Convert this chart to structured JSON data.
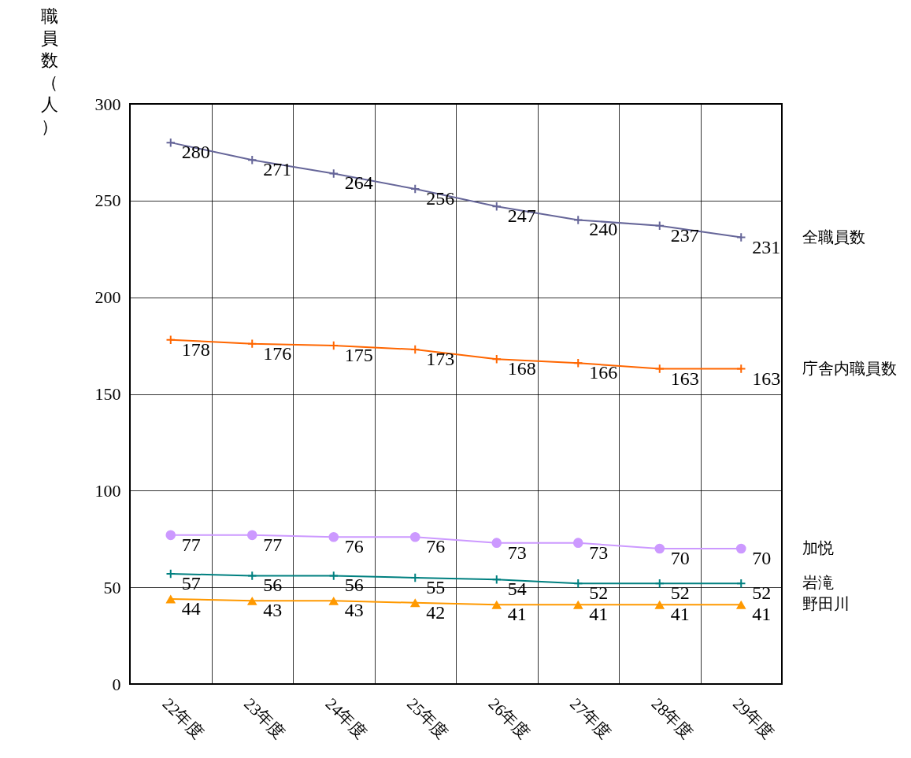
{
  "chart_data": {
    "type": "line",
    "ylabel": "職員数（人）",
    "categories": [
      "22年度",
      "23年度",
      "24年度",
      "25年度",
      "26年度",
      "27年度",
      "28年度",
      "29年度"
    ],
    "series": [
      {
        "name": "全職員数",
        "color": "#666699",
        "marker": "cross",
        "values": [
          280,
          271,
          264,
          256,
          247,
          240,
          237,
          231
        ]
      },
      {
        "name": "庁舎内職員数",
        "color": "#ff6600",
        "marker": "cross",
        "values": [
          178,
          176,
          175,
          173,
          168,
          166,
          163,
          163
        ]
      },
      {
        "name": "加悦",
        "color": "#cc99ff",
        "marker": "circle",
        "values": [
          77,
          77,
          76,
          76,
          73,
          73,
          70,
          70
        ]
      },
      {
        "name": "岩滝",
        "color": "#008080",
        "marker": "cross",
        "values": [
          57,
          56,
          56,
          55,
          54,
          52,
          52,
          52
        ]
      },
      {
        "name": "野田川",
        "color": "#ff9900",
        "marker": "triangle",
        "values": [
          44,
          43,
          43,
          42,
          41,
          41,
          41,
          41
        ]
      }
    ],
    "ylim": [
      0,
      300
    ],
    "yticks": [
      0,
      50,
      100,
      150,
      200,
      250,
      300
    ],
    "grid": true,
    "legend": "right",
    "data_labels": true
  }
}
